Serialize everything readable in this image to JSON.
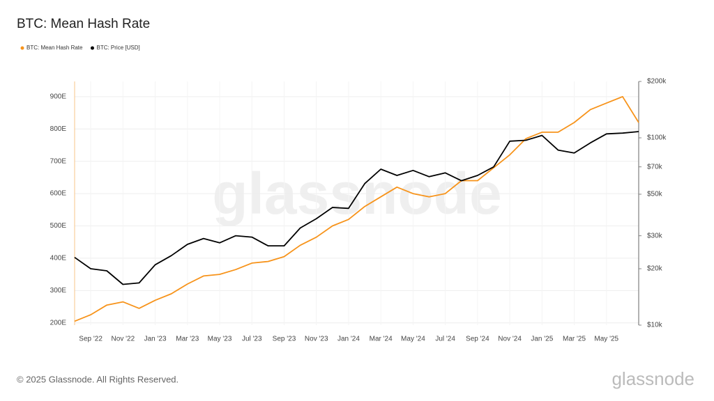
{
  "chart_data": {
    "type": "line",
    "title": "BTC: Mean Hash Rate",
    "x": [
      "2022-08",
      "2022-09",
      "2022-10",
      "2022-11",
      "2022-12",
      "2023-01",
      "2023-02",
      "2023-03",
      "2023-04",
      "2023-05",
      "2023-06",
      "2023-07",
      "2023-08",
      "2023-09",
      "2023-10",
      "2023-11",
      "2023-12",
      "2024-01",
      "2024-02",
      "2024-03",
      "2024-04",
      "2024-05",
      "2024-06",
      "2024-07",
      "2024-08",
      "2024-09",
      "2024-10",
      "2024-11",
      "2024-12",
      "2025-01",
      "2025-02",
      "2025-03",
      "2025-04",
      "2025-05",
      "2025-06",
      "2025-07"
    ],
    "series": [
      {
        "name": "BTC: Mean Hash Rate",
        "color": "#f7931a",
        "values": [
          205,
          225,
          255,
          265,
          245,
          270,
          290,
          320,
          345,
          350,
          365,
          385,
          390,
          405,
          440,
          465,
          500,
          520,
          560,
          590,
          620,
          600,
          590,
          600,
          640,
          640,
          680,
          720,
          770,
          790,
          790,
          820,
          860,
          880,
          900,
          820
        ]
      },
      {
        "name": "BTC: Price [USD]",
        "color": "#000000",
        "axis": "y2",
        "values": [
          23000,
          20000,
          19500,
          16500,
          16800,
          21000,
          23500,
          27000,
          29000,
          27500,
          30000,
          29500,
          26500,
          26500,
          33000,
          37000,
          42500,
          42000,
          57000,
          68000,
          63000,
          67000,
          62000,
          65000,
          59000,
          63000,
          70000,
          96000,
          97000,
          103000,
          86000,
          83000,
          94000,
          105000,
          106000,
          108000
        ]
      }
    ],
    "xlim": [
      "2022-08",
      "2025-07"
    ],
    "xticks": [
      {
        "value": "2022-09",
        "label": "Sep '22"
      },
      {
        "value": "2022-11",
        "label": "Nov '22"
      },
      {
        "value": "2023-01",
        "label": "Jan '23"
      },
      {
        "value": "2023-03",
        "label": "Mar '23"
      },
      {
        "value": "2023-05",
        "label": "May '23"
      },
      {
        "value": "2023-07",
        "label": "Jul '23"
      },
      {
        "value": "2023-09",
        "label": "Sep '23"
      },
      {
        "value": "2023-11",
        "label": "Nov '23"
      },
      {
        "value": "2024-01",
        "label": "Jan '24"
      },
      {
        "value": "2024-03",
        "label": "Mar '24"
      },
      {
        "value": "2024-05",
        "label": "May '24"
      },
      {
        "value": "2024-07",
        "label": "Jul '24"
      },
      {
        "value": "2024-09",
        "label": "Sep '24"
      },
      {
        "value": "2024-11",
        "label": "Nov '24"
      },
      {
        "value": "2025-01",
        "label": "Jan '25"
      },
      {
        "value": "2025-03",
        "label": "Mar '25"
      },
      {
        "value": "2025-05",
        "label": "May '25"
      }
    ],
    "ylim": [
      193,
      947
    ],
    "yticks": [
      {
        "value": 200,
        "label": "200E"
      },
      {
        "value": 300,
        "label": "300E"
      },
      {
        "value": 400,
        "label": "400E"
      },
      {
        "value": 500,
        "label": "500E"
      },
      {
        "value": 600,
        "label": "600E"
      },
      {
        "value": 700,
        "label": "700E"
      },
      {
        "value": 800,
        "label": "800E"
      },
      {
        "value": 900,
        "label": "900E"
      }
    ],
    "y2lim": [
      10000,
      200000
    ],
    "y2log": true,
    "y2ticks": [
      {
        "value": 10000,
        "label": "$10k"
      },
      {
        "value": 20000,
        "label": "$20k"
      },
      {
        "value": 30000,
        "label": "$30k"
      },
      {
        "value": 50000,
        "label": "$50k"
      },
      {
        "value": 70000,
        "label": "$70k"
      },
      {
        "value": 100000,
        "label": "$100k"
      },
      {
        "value": 200000,
        "label": "$200k"
      }
    ],
    "grid": true,
    "legend": "top-left"
  },
  "watermark": "glassnode",
  "footer": {
    "copyright": "© 2025 Glassnode. All Rights Reserved.",
    "brand": "glassnode"
  }
}
